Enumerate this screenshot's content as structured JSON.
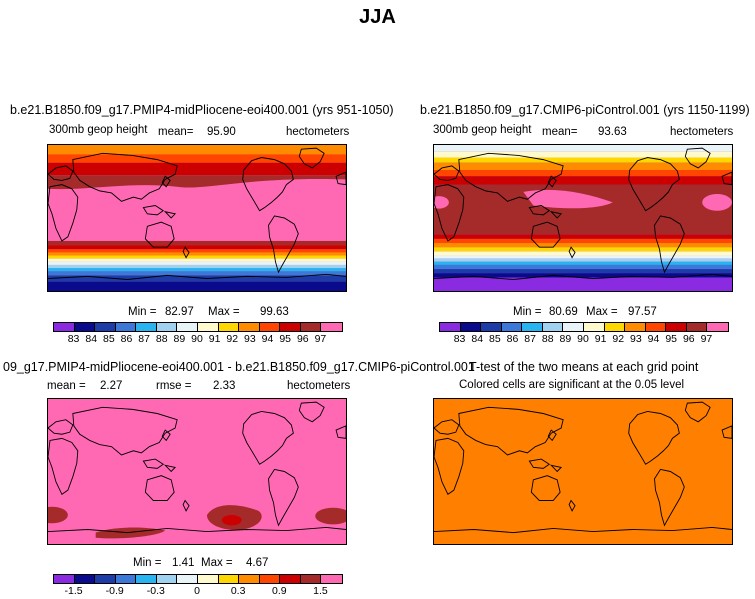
{
  "title": "JJA",
  "colorbar_colors": [
    "#8a2be2",
    "#0a0a8c",
    "#1e3ca8",
    "#3c78d8",
    "#28b4f0",
    "#a0d2f0",
    "#e8f4f8",
    "#fffacd",
    "#ffd700",
    "#ff8c00",
    "#ff4500",
    "#cc0000",
    "#a52a2a",
    "#ff69b4"
  ],
  "panels": {
    "top_left": {
      "title": "b.e21.B1850.f09_g17.PMIP4-midPliocene-eoi400.001 (yrs 951-1050)",
      "variable": "300mb geop height",
      "mean_label": "mean=",
      "mean_value": "95.90",
      "units": "hectometers",
      "min_label": "Min =",
      "min_value": "82.97",
      "max_label": "Max =",
      "max_value": "99.63",
      "colorbar_labels": [
        "83",
        "84",
        "85",
        "86",
        "87",
        "88",
        "89",
        "90",
        "91",
        "92",
        "93",
        "94",
        "95",
        "96",
        "97"
      ]
    },
    "top_right": {
      "title": "b.e21.B1850.f09_g17.CMIP6-piControl.001 (yrs 1150-1199)",
      "variable": "300mb geop height",
      "mean_label": "mean=",
      "mean_value": "93.63",
      "units": "hectometers",
      "min_label": "Min =",
      "min_value": "80.69",
      "max_label": "Max =",
      "max_value": "97.57",
      "colorbar_labels": [
        "83",
        "84",
        "85",
        "86",
        "87",
        "88",
        "89",
        "90",
        "91",
        "92",
        "93",
        "94",
        "95",
        "96",
        "97"
      ]
    },
    "bottom_left": {
      "title": "09_g17.PMIP4-midPliocene-eoi400.001 - b.e21.B1850.f09_g17.CMIP6-piControl.001",
      "mean_label": "mean =",
      "mean_value": "2.27",
      "rmse_label": "rmse =",
      "rmse_value": "2.33",
      "units": "hectometers",
      "min_label": "Min =",
      "min_value": "1.41",
      "max_label": "Max =",
      "max_value": "4.67",
      "colorbar_labels": [
        "-1.5",
        "-0.9",
        "-0.3",
        "0",
        "0.3",
        "0.9",
        "1.5"
      ]
    },
    "bottom_right": {
      "title": "T-test of the two means at each grid point",
      "subtitle": "Colored cells are significant at the 0.05 level"
    }
  }
}
